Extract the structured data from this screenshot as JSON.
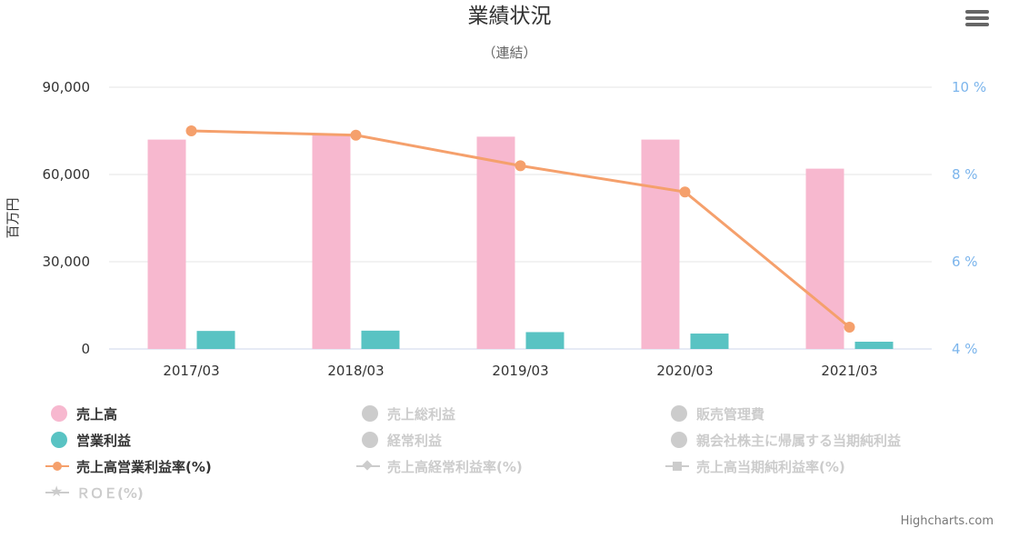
{
  "chart_data": {
    "type": "bar",
    "title": "業績状況",
    "subtitle": "（連結）",
    "categories": [
      "2017/03",
      "2018/03",
      "2019/03",
      "2020/03",
      "2021/03"
    ],
    "y_left": {
      "label": "百万円",
      "min": 0,
      "max": 90000,
      "ticks": [
        "0",
        "30,000",
        "60,000",
        "90,000"
      ],
      "tick_values": [
        0,
        30000,
        60000,
        90000
      ]
    },
    "y_right": {
      "min": 4,
      "max": 10,
      "ticks": [
        "4 %",
        "6 %",
        "8 %",
        "10 %"
      ],
      "tick_values": [
        4,
        6,
        8,
        10
      ]
    },
    "grid": true,
    "series": [
      {
        "name": "売上高",
        "kind": "column",
        "axis": "left",
        "color": "#f7b8cf",
        "visible": true,
        "values": [
          72000,
          74000,
          73000,
          72000,
          62000
        ]
      },
      {
        "name": "営業利益",
        "kind": "column",
        "axis": "left",
        "color": "#59c3c3",
        "visible": true,
        "values": [
          6200,
          6300,
          5800,
          5300,
          2500
        ]
      },
      {
        "name": "売上高営業利益率(%)",
        "kind": "line",
        "axis": "right",
        "color": "#f5a06c",
        "visible": true,
        "values": [
          9.0,
          8.9,
          8.2,
          7.6,
          4.5
        ]
      },
      {
        "name": "売上総利益",
        "visible": false
      },
      {
        "name": "販売管理費",
        "visible": false
      },
      {
        "name": "経常利益",
        "visible": false
      },
      {
        "name": "親会社株主に帰属する当期純利益",
        "visible": false
      },
      {
        "name": "売上高経常利益率(%)",
        "visible": false
      },
      {
        "name": "売上高当期純利益率(%)",
        "visible": false
      },
      {
        "name": "ＲＯＥ(%)",
        "visible": false
      }
    ],
    "legend_position": "bottom"
  },
  "legend": [
    {
      "label": "売上高",
      "symbol": "dot",
      "color": "#f7b8cf",
      "active": true
    },
    {
      "label": "売上総利益",
      "symbol": "dot",
      "color": "#cccccc",
      "active": false
    },
    {
      "label": "販売管理費",
      "symbol": "dot",
      "color": "#cccccc",
      "active": false
    },
    {
      "label": "営業利益",
      "symbol": "dot",
      "color": "#59c3c3",
      "active": true
    },
    {
      "label": "経常利益",
      "symbol": "dot",
      "color": "#cccccc",
      "active": false
    },
    {
      "label": "親会社株主に帰属する当期純利益",
      "symbol": "dot",
      "color": "#cccccc",
      "active": false
    },
    {
      "label": "売上高営業利益率(%)",
      "symbol": "line-circle",
      "color": "#f5a06c",
      "active": true
    },
    {
      "label": "売上高経常利益率(%)",
      "symbol": "line-diamond",
      "color": "#cccccc",
      "active": false
    },
    {
      "label": "売上高当期純利益率(%)",
      "symbol": "line-square",
      "color": "#cccccc",
      "active": false
    },
    {
      "label": "ＲＯＥ(%)",
      "symbol": "line-star",
      "color": "#cccccc",
      "active": false
    }
  ],
  "credits": "Highcharts.com",
  "menu_icon": "hamburger-menu-icon"
}
